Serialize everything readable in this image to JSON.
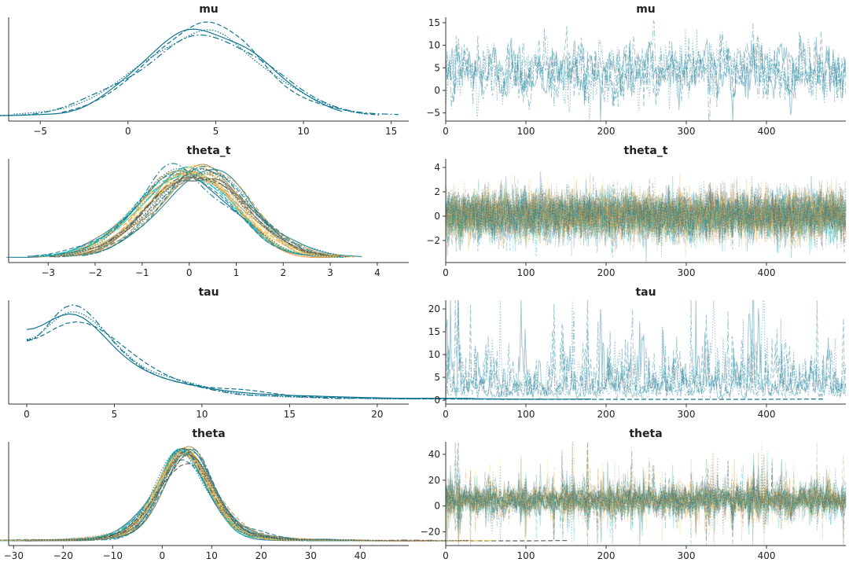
{
  "palette": [
    "#107591",
    "#00c0bf",
    "#f69a48",
    "#fdcd49",
    "#8da798",
    "#4d4d4d",
    "#b5924c",
    "#19798b"
  ],
  "chart_data": [
    {
      "type": "line",
      "kind": "kde",
      "title": "mu",
      "chains": 4,
      "xlim": [
        -6.8,
        16
      ],
      "xticks": [
        -5,
        0,
        5,
        10,
        15
      ],
      "distribution": {
        "mean": 4.4,
        "sd": 3.3
      }
    },
    {
      "type": "line",
      "kind": "trace",
      "title": "mu",
      "chains": 4,
      "draws": 500,
      "xlim": [
        0,
        499
      ],
      "ylim": [
        -6.8,
        16.2
      ],
      "xticks": [
        0,
        100,
        200,
        300,
        400
      ],
      "yticks": [
        -5,
        0,
        5,
        10,
        15
      ],
      "distribution": {
        "mean": 4.4,
        "sd": 3.3
      }
    },
    {
      "type": "line",
      "kind": "kde",
      "title": "theta_t",
      "chains": 4,
      "dims": 8,
      "xlim": [
        -3.84,
        4.67
      ],
      "xticks": [
        -3,
        -2,
        -1,
        0,
        1,
        2,
        3,
        4
      ],
      "distribution": {
        "mean": 0.1,
        "sd": 0.95
      }
    },
    {
      "type": "line",
      "kind": "trace",
      "title": "theta_t",
      "chains": 4,
      "dims": 8,
      "draws": 500,
      "xlim": [
        0,
        499
      ],
      "ylim": [
        -3.81,
        4.71
      ],
      "xticks": [
        0,
        100,
        200,
        300,
        400
      ],
      "yticks": [
        -2,
        0,
        2,
        4
      ],
      "distribution": {
        "mean": 0.1,
        "sd": 0.95
      }
    },
    {
      "type": "line",
      "kind": "kde",
      "title": "tau",
      "chains": 4,
      "xlim": [
        -1.03,
        21.8
      ],
      "xticks": [
        0,
        5,
        10,
        15,
        20
      ],
      "distribution": {
        "median": 3.3,
        "log_sd": 0.75
      }
    },
    {
      "type": "line",
      "kind": "trace",
      "title": "tau",
      "chains": 4,
      "draws": 500,
      "xlim": [
        0,
        499
      ],
      "ylim": [
        -0.86,
        21.9
      ],
      "xticks": [
        0,
        100,
        200,
        300,
        400
      ],
      "yticks": [
        0,
        5,
        10,
        15,
        20
      ],
      "distribution": {
        "median": 3.3,
        "log_sd": 0.75
      }
    },
    {
      "type": "line",
      "kind": "kde",
      "title": "theta",
      "chains": 4,
      "dims": 8,
      "xlim": [
        -31,
        49.8
      ],
      "xticks": [
        -30,
        -20,
        -10,
        0,
        10,
        20,
        30,
        40
      ],
      "distribution": {
        "mean": 4.6,
        "sd": 6.5
      }
    },
    {
      "type": "line",
      "kind": "trace",
      "title": "theta",
      "chains": 4,
      "dims": 8,
      "draws": 500,
      "xlim": [
        0,
        499
      ],
      "ylim": [
        -30.6,
        49.7
      ],
      "xticks": [
        0,
        100,
        200,
        300,
        400
      ],
      "yticks": [
        -20,
        0,
        20,
        40
      ],
      "distribution": {
        "mean": 4.6,
        "sd": 6.5
      }
    }
  ]
}
